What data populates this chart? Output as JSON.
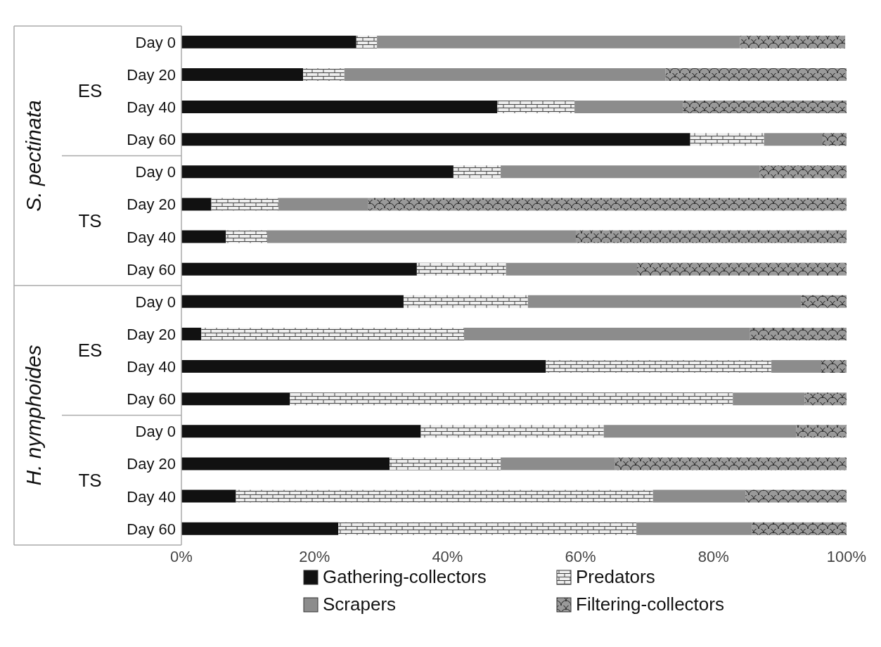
{
  "chart_data": {
    "type": "bar",
    "orientation": "horizontal",
    "stacked": true,
    "categories": [
      "Day 0",
      "Day 20",
      "Day 40",
      "Day 60",
      "Day 0",
      "Day 20",
      "Day 40",
      "Day 60",
      "Day 0",
      "Day 20",
      "Day 40",
      "Day 60",
      "Day 0",
      "Day 20",
      "Day 40",
      "Day 60"
    ],
    "series": [
      {
        "name": "Gathering-collectors",
        "color": "#111111",
        "values": [
          26.3,
          18.3,
          47.5,
          76.5,
          40.9,
          4.5,
          6.7,
          35.4,
          33.4,
          3.0,
          54.8,
          16.3,
          36.0,
          31.3,
          8.2,
          23.6
        ]
      },
      {
        "name": "Predators",
        "color": "#eeeeee",
        "values": [
          3.1,
          6.2,
          11.6,
          11.1,
          7.1,
          10.1,
          6.2,
          13.4,
          18.7,
          39.5,
          33.9,
          66.6,
          27.5,
          16.7,
          62.7,
          44.8
        ]
      },
      {
        "name": "Scrapers",
        "color": "#8c8c8c",
        "values": [
          54.6,
          48.3,
          16.3,
          8.8,
          38.9,
          13.5,
          46.4,
          19.7,
          41.1,
          43.0,
          7.5,
          10.8,
          28.9,
          17.2,
          13.9,
          17.4
        ]
      },
      {
        "name": "Filtering-collectors",
        "color": "#9a9a9a",
        "values": [
          15.8,
          27.2,
          24.6,
          3.6,
          13.1,
          71.9,
          40.7,
          31.5,
          6.8,
          14.5,
          3.8,
          6.3,
          7.6,
          34.8,
          15.2,
          14.2
        ]
      }
    ],
    "xlim": [
      0,
      100
    ],
    "xticks": [
      {
        "value": 0,
        "label": "0%"
      },
      {
        "value": 20,
        "label": "20%"
      },
      {
        "value": 40,
        "label": "40%"
      },
      {
        "value": 60,
        "label": "60%"
      },
      {
        "value": 80,
        "label": "80%"
      },
      {
        "value": 100,
        "label": "100%"
      }
    ],
    "annotations": [
      "S. pectinata",
      "ES",
      "TS",
      "H. nymphoides",
      "ES",
      "TS"
    ],
    "grid": false,
    "legend": "bottom"
  }
}
